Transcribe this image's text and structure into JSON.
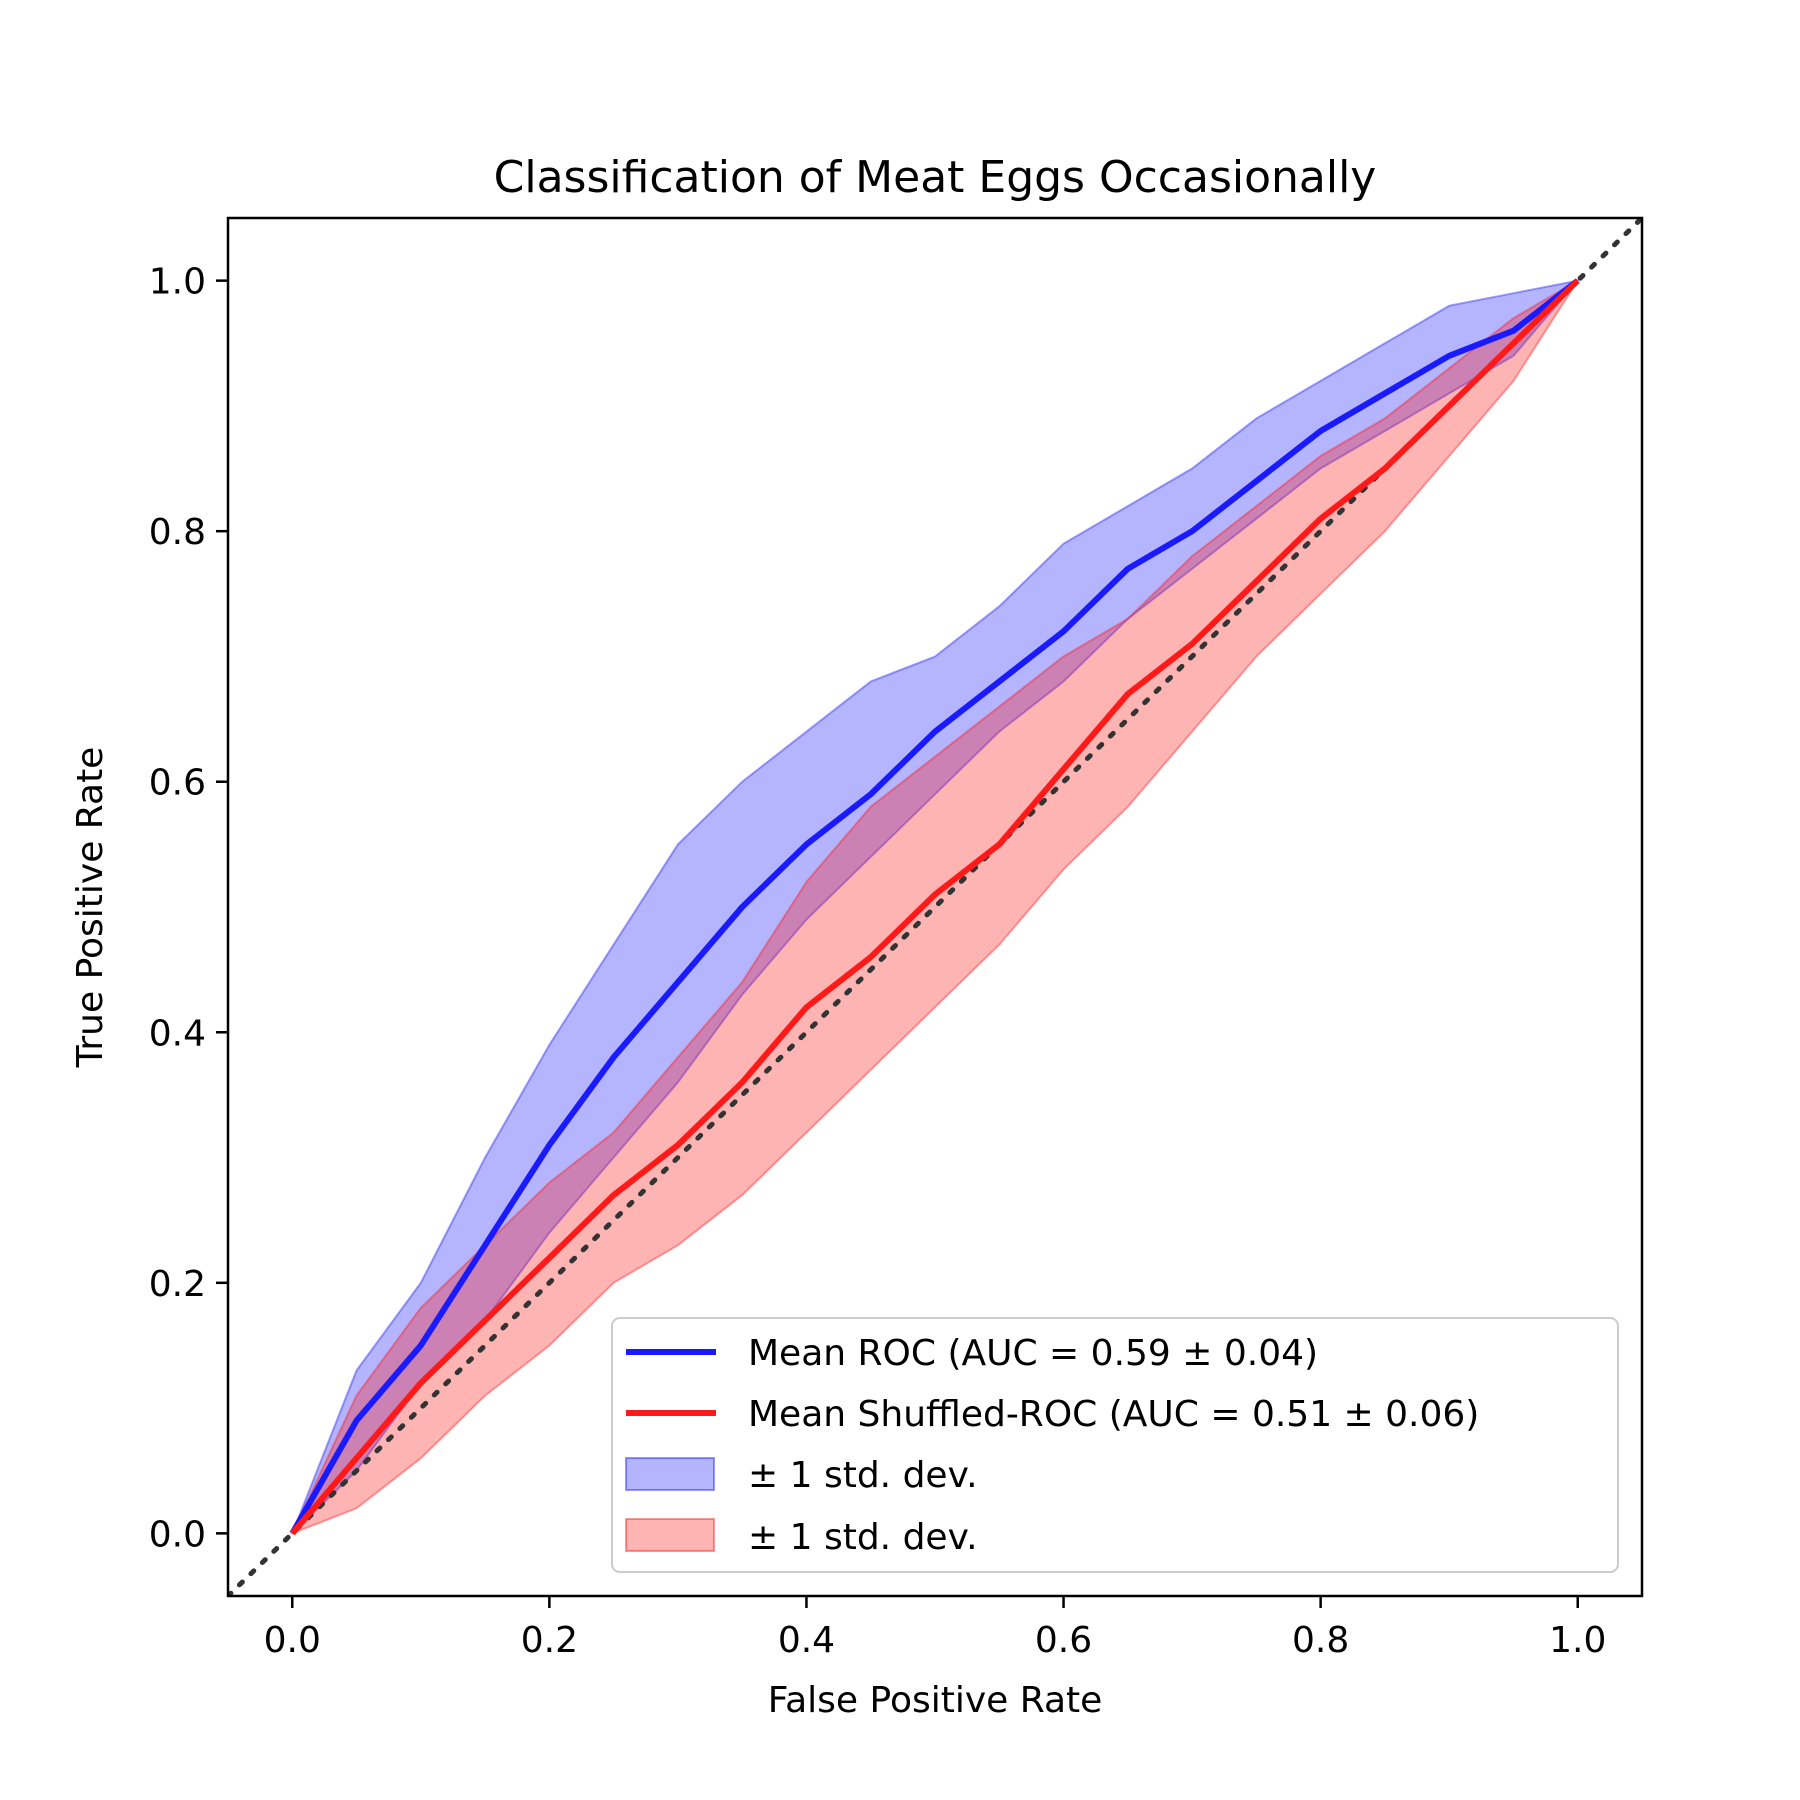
{
  "chart_data": {
    "type": "line",
    "title": "Classification of Meat Eggs Occasionally",
    "xlabel": "False Positive Rate",
    "ylabel": "True Positive Rate",
    "xlim": [
      -0.05,
      1.05
    ],
    "ylim": [
      -0.05,
      1.05
    ],
    "xticks": [
      "0.0",
      "0.2",
      "0.4",
      "0.6",
      "0.8",
      "1.0"
    ],
    "yticks": [
      "0.0",
      "0.2",
      "0.4",
      "0.6",
      "0.8",
      "1.0"
    ],
    "grid": false,
    "legend_position": "bottom-right",
    "x": [
      0.0,
      0.05,
      0.1,
      0.15,
      0.2,
      0.25,
      0.3,
      0.35,
      0.4,
      0.45,
      0.5,
      0.55,
      0.6,
      0.65,
      0.7,
      0.75,
      0.8,
      0.85,
      0.9,
      0.95,
      1.0
    ],
    "series": [
      {
        "name": "Mean ROC (AUC = 0.59 ± 0.04)",
        "color": "#1a1aff",
        "values": [
          0.0,
          0.09,
          0.15,
          0.23,
          0.31,
          0.38,
          0.44,
          0.5,
          0.55,
          0.59,
          0.64,
          0.68,
          0.72,
          0.77,
          0.8,
          0.84,
          0.88,
          0.91,
          0.94,
          0.96,
          1.0
        ],
        "lower": [
          0.0,
          0.05,
          0.12,
          0.17,
          0.24,
          0.3,
          0.36,
          0.43,
          0.49,
          0.54,
          0.59,
          0.64,
          0.68,
          0.73,
          0.77,
          0.81,
          0.85,
          0.88,
          0.91,
          0.94,
          1.0
        ],
        "upper": [
          0.0,
          0.13,
          0.2,
          0.3,
          0.39,
          0.47,
          0.55,
          0.6,
          0.64,
          0.68,
          0.7,
          0.74,
          0.79,
          0.82,
          0.85,
          0.89,
          0.92,
          0.95,
          0.98,
          0.99,
          1.0
        ]
      },
      {
        "name": "Mean Shuffled-ROC (AUC = 0.51 ± 0.06)",
        "color": "#ff1a1a",
        "values": [
          0.0,
          0.06,
          0.12,
          0.17,
          0.22,
          0.27,
          0.31,
          0.36,
          0.42,
          0.46,
          0.51,
          0.55,
          0.61,
          0.67,
          0.71,
          0.76,
          0.81,
          0.85,
          0.9,
          0.95,
          1.0
        ],
        "lower": [
          0.0,
          0.02,
          0.06,
          0.11,
          0.15,
          0.2,
          0.23,
          0.27,
          0.32,
          0.37,
          0.42,
          0.47,
          0.53,
          0.58,
          0.64,
          0.7,
          0.75,
          0.8,
          0.86,
          0.92,
          1.0
        ],
        "upper": [
          0.0,
          0.11,
          0.18,
          0.23,
          0.28,
          0.32,
          0.38,
          0.44,
          0.52,
          0.58,
          0.62,
          0.66,
          0.7,
          0.73,
          0.78,
          0.82,
          0.86,
          0.89,
          0.93,
          0.97,
          1.0
        ]
      }
    ],
    "band_labels": [
      "± 1 std. dev.",
      "± 1 std. dev."
    ],
    "chance_line": {
      "color": "#333333",
      "style": "dotted"
    }
  }
}
